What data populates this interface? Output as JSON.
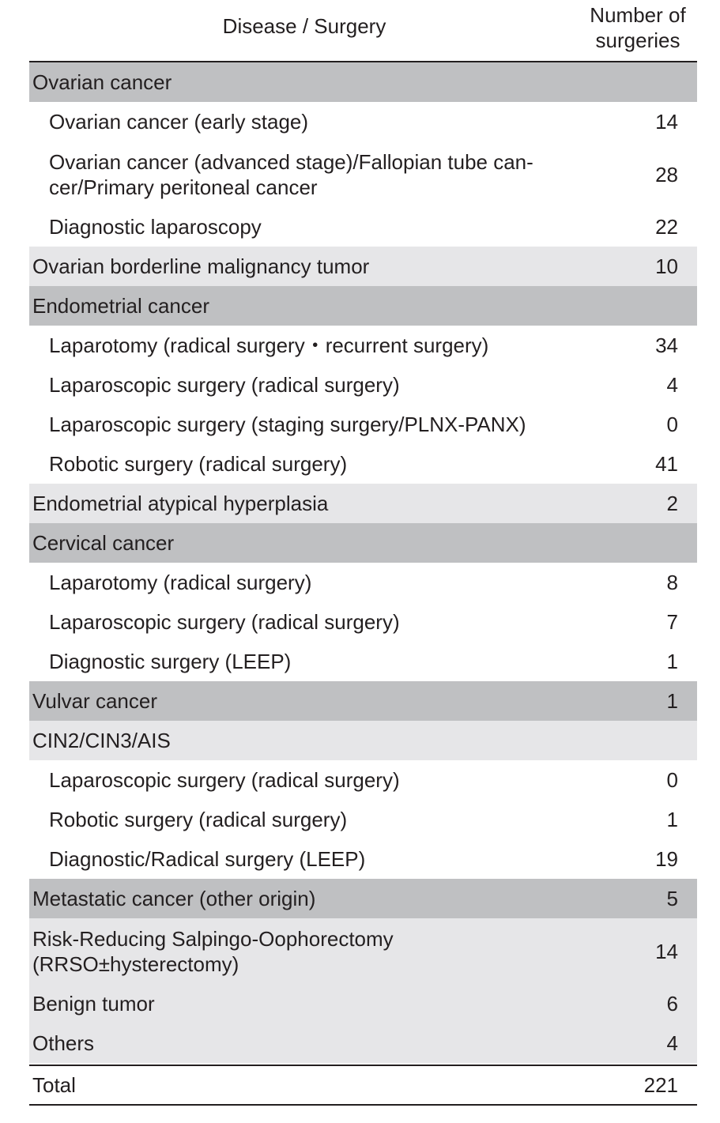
{
  "header": {
    "col1": "Disease / Surgery",
    "col2_line1": "Number of",
    "col2_line2": "surgeries"
  },
  "colors": {
    "category_dark": "#bfc0c2",
    "category_light": "#e6e6e8"
  },
  "rows": [
    {
      "label": "Ovarian cancer",
      "value": "",
      "style": "dark"
    },
    {
      "label": "Ovarian cancer (early stage)",
      "value": "14",
      "style": "sub"
    },
    {
      "label": "Ovarian cancer (advanced stage)/Fallopian tube can-\ncer/Primary peritoneal cancer",
      "value": "28",
      "style": "sub"
    },
    {
      "label": "Diagnostic laparoscopy",
      "value": "22",
      "style": "sub"
    },
    {
      "label": "Ovarian borderline malignancy tumor",
      "value": "10",
      "style": "light"
    },
    {
      "label": "Endometrial cancer",
      "value": "",
      "style": "dark"
    },
    {
      "label": "Laparotomy (radical surgery・recurrent surgery)",
      "value": "34",
      "style": "sub"
    },
    {
      "label": "Laparoscopic surgery (radical surgery)",
      "value": "4",
      "style": "sub"
    },
    {
      "label": "Laparoscopic surgery (staging surgery/PLNX-PANX)",
      "value": "0",
      "style": "sub"
    },
    {
      "label": "Robotic surgery (radical surgery)",
      "value": "41",
      "style": "sub"
    },
    {
      "label": "Endometrial atypical hyperplasia",
      "value": "2",
      "style": "light"
    },
    {
      "label": "Cervical cancer",
      "value": "",
      "style": "dark"
    },
    {
      "label": "Laparotomy (radical surgery)",
      "value": "8",
      "style": "sub"
    },
    {
      "label": "Laparoscopic surgery (radical surgery)",
      "value": "7",
      "style": "sub"
    },
    {
      "label": "Diagnostic surgery (LEEP)",
      "value": "1",
      "style": "sub"
    },
    {
      "label": "Vulvar cancer",
      "value": "1",
      "style": "dark"
    },
    {
      "label": "CIN2/CIN3/AIS",
      "value": "",
      "style": "light"
    },
    {
      "label": "Laparoscopic surgery (radical surgery)",
      "value": "0",
      "style": "sub"
    },
    {
      "label": "Robotic surgery (radical surgery)",
      "value": "1",
      "style": "sub"
    },
    {
      "label": "Diagnostic/Radical surgery (LEEP)",
      "value": "19",
      "style": "sub"
    },
    {
      "label": "Metastatic cancer (other origin)",
      "value": "5",
      "style": "dark"
    },
    {
      "label": "Risk-Reducing Salpingo-Oophorectomy\n(RRSO±hysterectomy)",
      "value": "14",
      "style": "light"
    },
    {
      "label": "Benign tumor",
      "value": "6",
      "style": "light"
    },
    {
      "label": "Others",
      "value": "4",
      "style": "light"
    }
  ],
  "total": {
    "label": "Total",
    "value": "221"
  }
}
